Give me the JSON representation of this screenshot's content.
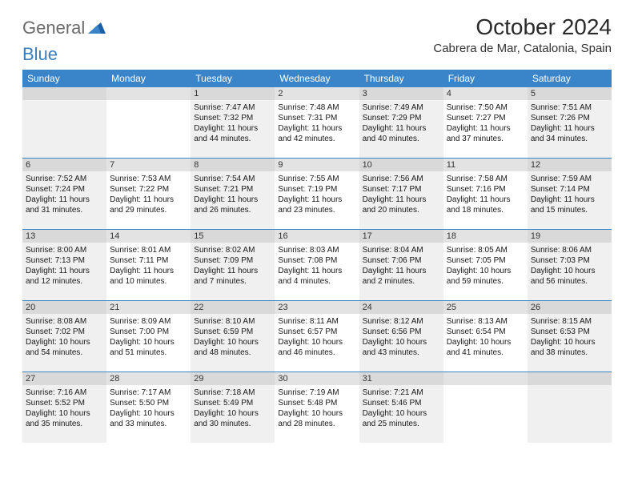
{
  "logo": {
    "word1": "General",
    "word2": "Blue"
  },
  "title": "October 2024",
  "location": "Cabrera de Mar, Catalonia, Spain",
  "header_bg": "#3a85c9",
  "weekdays": [
    "Sunday",
    "Monday",
    "Tuesday",
    "Wednesday",
    "Thursday",
    "Friday",
    "Saturday"
  ],
  "weeks": [
    [
      {
        "num": "",
        "empty": true,
        "shade": true
      },
      {
        "num": "",
        "empty": true,
        "shade": false
      },
      {
        "num": "1",
        "shade": true,
        "sunrise": "Sunrise: 7:47 AM",
        "sunset": "Sunset: 7:32 PM",
        "day1": "Daylight: 11 hours",
        "day2": "and 44 minutes."
      },
      {
        "num": "2",
        "shade": false,
        "sunrise": "Sunrise: 7:48 AM",
        "sunset": "Sunset: 7:31 PM",
        "day1": "Daylight: 11 hours",
        "day2": "and 42 minutes."
      },
      {
        "num": "3",
        "shade": true,
        "sunrise": "Sunrise: 7:49 AM",
        "sunset": "Sunset: 7:29 PM",
        "day1": "Daylight: 11 hours",
        "day2": "and 40 minutes."
      },
      {
        "num": "4",
        "shade": false,
        "sunrise": "Sunrise: 7:50 AM",
        "sunset": "Sunset: 7:27 PM",
        "day1": "Daylight: 11 hours",
        "day2": "and 37 minutes."
      },
      {
        "num": "5",
        "shade": true,
        "sunrise": "Sunrise: 7:51 AM",
        "sunset": "Sunset: 7:26 PM",
        "day1": "Daylight: 11 hours",
        "day2": "and 34 minutes."
      }
    ],
    [
      {
        "num": "6",
        "shade": true,
        "sunrise": "Sunrise: 7:52 AM",
        "sunset": "Sunset: 7:24 PM",
        "day1": "Daylight: 11 hours",
        "day2": "and 31 minutes."
      },
      {
        "num": "7",
        "shade": false,
        "sunrise": "Sunrise: 7:53 AM",
        "sunset": "Sunset: 7:22 PM",
        "day1": "Daylight: 11 hours",
        "day2": "and 29 minutes."
      },
      {
        "num": "8",
        "shade": true,
        "sunrise": "Sunrise: 7:54 AM",
        "sunset": "Sunset: 7:21 PM",
        "day1": "Daylight: 11 hours",
        "day2": "and 26 minutes."
      },
      {
        "num": "9",
        "shade": false,
        "sunrise": "Sunrise: 7:55 AM",
        "sunset": "Sunset: 7:19 PM",
        "day1": "Daylight: 11 hours",
        "day2": "and 23 minutes."
      },
      {
        "num": "10",
        "shade": true,
        "sunrise": "Sunrise: 7:56 AM",
        "sunset": "Sunset: 7:17 PM",
        "day1": "Daylight: 11 hours",
        "day2": "and 20 minutes."
      },
      {
        "num": "11",
        "shade": false,
        "sunrise": "Sunrise: 7:58 AM",
        "sunset": "Sunset: 7:16 PM",
        "day1": "Daylight: 11 hours",
        "day2": "and 18 minutes."
      },
      {
        "num": "12",
        "shade": true,
        "sunrise": "Sunrise: 7:59 AM",
        "sunset": "Sunset: 7:14 PM",
        "day1": "Daylight: 11 hours",
        "day2": "and 15 minutes."
      }
    ],
    [
      {
        "num": "13",
        "shade": true,
        "sunrise": "Sunrise: 8:00 AM",
        "sunset": "Sunset: 7:13 PM",
        "day1": "Daylight: 11 hours",
        "day2": "and 12 minutes."
      },
      {
        "num": "14",
        "shade": false,
        "sunrise": "Sunrise: 8:01 AM",
        "sunset": "Sunset: 7:11 PM",
        "day1": "Daylight: 11 hours",
        "day2": "and 10 minutes."
      },
      {
        "num": "15",
        "shade": true,
        "sunrise": "Sunrise: 8:02 AM",
        "sunset": "Sunset: 7:09 PM",
        "day1": "Daylight: 11 hours",
        "day2": "and 7 minutes."
      },
      {
        "num": "16",
        "shade": false,
        "sunrise": "Sunrise: 8:03 AM",
        "sunset": "Sunset: 7:08 PM",
        "day1": "Daylight: 11 hours",
        "day2": "and 4 minutes."
      },
      {
        "num": "17",
        "shade": true,
        "sunrise": "Sunrise: 8:04 AM",
        "sunset": "Sunset: 7:06 PM",
        "day1": "Daylight: 11 hours",
        "day2": "and 2 minutes."
      },
      {
        "num": "18",
        "shade": false,
        "sunrise": "Sunrise: 8:05 AM",
        "sunset": "Sunset: 7:05 PM",
        "day1": "Daylight: 10 hours",
        "day2": "and 59 minutes."
      },
      {
        "num": "19",
        "shade": true,
        "sunrise": "Sunrise: 8:06 AM",
        "sunset": "Sunset: 7:03 PM",
        "day1": "Daylight: 10 hours",
        "day2": "and 56 minutes."
      }
    ],
    [
      {
        "num": "20",
        "shade": true,
        "sunrise": "Sunrise: 8:08 AM",
        "sunset": "Sunset: 7:02 PM",
        "day1": "Daylight: 10 hours",
        "day2": "and 54 minutes."
      },
      {
        "num": "21",
        "shade": false,
        "sunrise": "Sunrise: 8:09 AM",
        "sunset": "Sunset: 7:00 PM",
        "day1": "Daylight: 10 hours",
        "day2": "and 51 minutes."
      },
      {
        "num": "22",
        "shade": true,
        "sunrise": "Sunrise: 8:10 AM",
        "sunset": "Sunset: 6:59 PM",
        "day1": "Daylight: 10 hours",
        "day2": "and 48 minutes."
      },
      {
        "num": "23",
        "shade": false,
        "sunrise": "Sunrise: 8:11 AM",
        "sunset": "Sunset: 6:57 PM",
        "day1": "Daylight: 10 hours",
        "day2": "and 46 minutes."
      },
      {
        "num": "24",
        "shade": true,
        "sunrise": "Sunrise: 8:12 AM",
        "sunset": "Sunset: 6:56 PM",
        "day1": "Daylight: 10 hours",
        "day2": "and 43 minutes."
      },
      {
        "num": "25",
        "shade": false,
        "sunrise": "Sunrise: 8:13 AM",
        "sunset": "Sunset: 6:54 PM",
        "day1": "Daylight: 10 hours",
        "day2": "and 41 minutes."
      },
      {
        "num": "26",
        "shade": true,
        "sunrise": "Sunrise: 8:15 AM",
        "sunset": "Sunset: 6:53 PM",
        "day1": "Daylight: 10 hours",
        "day2": "and 38 minutes."
      }
    ],
    [
      {
        "num": "27",
        "shade": true,
        "sunrise": "Sunrise: 7:16 AM",
        "sunset": "Sunset: 5:52 PM",
        "day1": "Daylight: 10 hours",
        "day2": "and 35 minutes."
      },
      {
        "num": "28",
        "shade": false,
        "sunrise": "Sunrise: 7:17 AM",
        "sunset": "Sunset: 5:50 PM",
        "day1": "Daylight: 10 hours",
        "day2": "and 33 minutes."
      },
      {
        "num": "29",
        "shade": true,
        "sunrise": "Sunrise: 7:18 AM",
        "sunset": "Sunset: 5:49 PM",
        "day1": "Daylight: 10 hours",
        "day2": "and 30 minutes."
      },
      {
        "num": "30",
        "shade": false,
        "sunrise": "Sunrise: 7:19 AM",
        "sunset": "Sunset: 5:48 PM",
        "day1": "Daylight: 10 hours",
        "day2": "and 28 minutes."
      },
      {
        "num": "31",
        "shade": true,
        "sunrise": "Sunrise: 7:21 AM",
        "sunset": "Sunset: 5:46 PM",
        "day1": "Daylight: 10 hours",
        "day2": "and 25 minutes."
      },
      {
        "num": "",
        "empty": true,
        "shade": false
      },
      {
        "num": "",
        "empty": true,
        "shade": true
      }
    ]
  ]
}
